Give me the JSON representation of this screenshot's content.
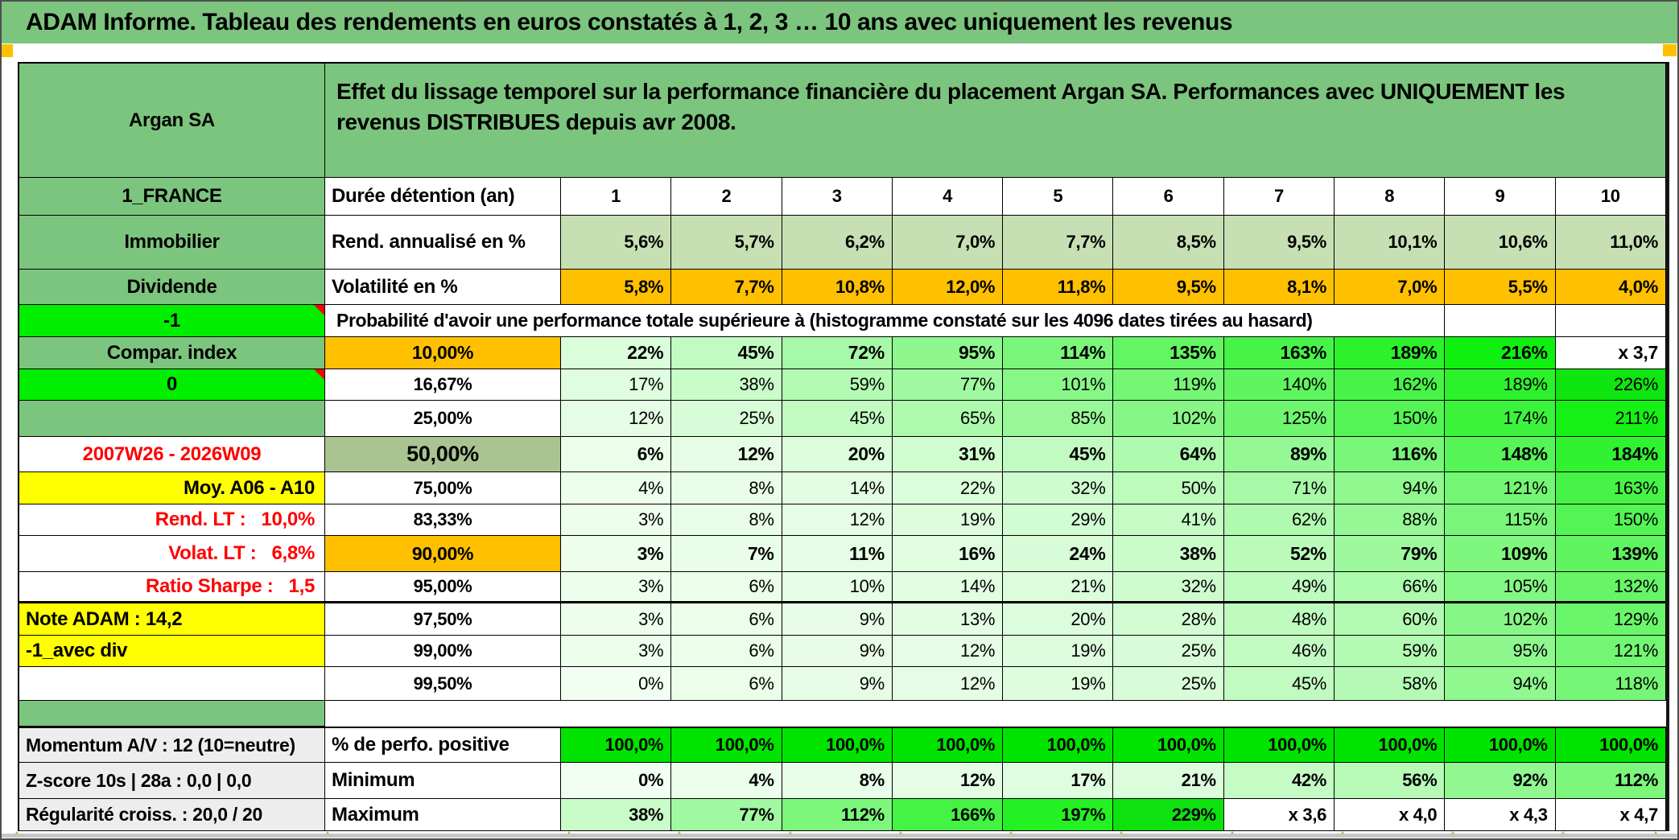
{
  "title": "ADAM Informe. Tableau des rendements en euros constatés à 1, 2, 3 … 10 ans avec uniquement les revenus",
  "header": {
    "asset": "Argan SA",
    "description": "Effet du lissage temporel sur la performance financière du placement Argan SA. Performances avec UNIQUEMENT les revenus DISTRIBUES depuis avr 2008."
  },
  "duree_row": {
    "col_a": "1_FRANCE",
    "label": "Durée détention (an)",
    "values": [
      "1",
      "2",
      "3",
      "4",
      "5",
      "6",
      "7",
      "8",
      "9",
      "10"
    ]
  },
  "rend_row": {
    "col_a": "Immobilier",
    "label": "Rend. annualisé en %",
    "values": [
      "5,6%",
      "5,7%",
      "6,2%",
      "7,0%",
      "7,7%",
      "8,5%",
      "9,5%",
      "10,1%",
      "10,6%",
      "11,0%"
    ]
  },
  "volat_row": {
    "col_a": "Dividende",
    "label": "Volatilité en %",
    "values": [
      "5,8%",
      "7,7%",
      "10,8%",
      "12,0%",
      "11,8%",
      "9,5%",
      "8,1%",
      "7,0%",
      "5,5%",
      "4,0%"
    ]
  },
  "proba_header": {
    "col_a": "-1",
    "label": "Probabilité d'avoir une performance totale supérieure à (histogramme constaté sur les 4096 dates tirées au hasard)"
  },
  "proba_rows": [
    {
      "a": "Compar. index",
      "a_v": "green",
      "b": "10,00%",
      "b_v": "orange",
      "emph": true,
      "values": [
        "22%",
        "45%",
        "72%",
        "95%",
        "114%",
        "135%",
        "163%",
        "189%",
        "216%",
        "x 3,7"
      ]
    },
    {
      "a": "0",
      "a_v": "bright",
      "corner": true,
      "b": "16,67%",
      "b_v": "plain",
      "values": [
        "17%",
        "38%",
        "59%",
        "77%",
        "101%",
        "119%",
        "140%",
        "162%",
        "189%",
        "226%"
      ]
    },
    {
      "a": "",
      "a_v": "green",
      "b": "25,00%",
      "b_v": "plain",
      "values": [
        "12%",
        "25%",
        "45%",
        "65%",
        "85%",
        "102%",
        "125%",
        "150%",
        "174%",
        "211%"
      ]
    },
    {
      "a": "2007W26 - 2026W09",
      "a_v": "redcenter",
      "b": "50,00%",
      "b_v": "sage",
      "emph": true,
      "values": [
        "6%",
        "12%",
        "20%",
        "31%",
        "45%",
        "64%",
        "89%",
        "116%",
        "148%",
        "184%"
      ]
    },
    {
      "a": "Moy. A06 - A10",
      "a_v": "yellow-r",
      "b": "75,00%",
      "b_v": "plain",
      "values": [
        "4%",
        "8%",
        "14%",
        "22%",
        "32%",
        "50%",
        "71%",
        "94%",
        "121%",
        "163%"
      ]
    },
    {
      "a": "Rend. LT :   10,0%",
      "a_v": "red",
      "b": "83,33%",
      "b_v": "plain",
      "values": [
        "3%",
        "8%",
        "12%",
        "19%",
        "29%",
        "41%",
        "62%",
        "88%",
        "115%",
        "150%"
      ]
    },
    {
      "a": "Volat. LT :   6,8%",
      "a_v": "red",
      "b": "90,00%",
      "b_v": "orange",
      "emph": true,
      "values": [
        "3%",
        "7%",
        "11%",
        "16%",
        "24%",
        "38%",
        "52%",
        "79%",
        "109%",
        "139%"
      ]
    },
    {
      "a": "Ratio Sharpe :   1,5",
      "a_v": "red",
      "b": "95,00%",
      "b_v": "plain",
      "thick": true,
      "values": [
        "3%",
        "6%",
        "10%",
        "14%",
        "21%",
        "32%",
        "49%",
        "66%",
        "105%",
        "132%"
      ]
    },
    {
      "a": "Note ADAM : 14,2",
      "a_v": "yellow-l",
      "b": "97,50%",
      "b_v": "plain",
      "values": [
        "3%",
        "6%",
        "9%",
        "13%",
        "20%",
        "28%",
        "48%",
        "60%",
        "102%",
        "129%"
      ]
    },
    {
      "a": "-1_avec div",
      "a_v": "yellow-l",
      "b": "99,00%",
      "b_v": "plain",
      "values": [
        "3%",
        "6%",
        "9%",
        "12%",
        "19%",
        "25%",
        "46%",
        "59%",
        "95%",
        "121%"
      ]
    },
    {
      "a": "",
      "a_v": "white",
      "b": "99,50%",
      "b_v": "plain",
      "values": [
        "0%",
        "6%",
        "9%",
        "12%",
        "19%",
        "25%",
        "45%",
        "58%",
        "94%",
        "118%"
      ]
    }
  ],
  "footer_rows": [
    {
      "a": "Momentum A/V : 12 (10=neutre)",
      "b": "% de perfo. positive",
      "variant": "perfo",
      "values": [
        "100,0%",
        "100,0%",
        "100,0%",
        "100,0%",
        "100,0%",
        "100,0%",
        "100,0%",
        "100,0%",
        "100,0%",
        "100,0%"
      ]
    },
    {
      "a": "Z-score 10s | 28a : 0,0 | 0,0",
      "b": "Minimum",
      "variant": "scale",
      "values": [
        "0%",
        "4%",
        "8%",
        "12%",
        "17%",
        "21%",
        "42%",
        "56%",
        "92%",
        "112%"
      ]
    },
    {
      "a": "Régularité croiss. : 20,0 / 20",
      "b": "Maximum",
      "variant": "scale",
      "values": [
        "38%",
        "77%",
        "112%",
        "166%",
        "197%",
        "229%",
        "x 3,6",
        "x 4,0",
        "x 4,3",
        "x 4,7"
      ]
    }
  ],
  "colors": {
    "header_green": "#7CC57E",
    "bright_green": "#00EE00",
    "perfo_green": "#00E400",
    "orange": "#FFC000",
    "yellow": "#FFFF00",
    "sage_light": "#C6E0B4",
    "sage_dark": "#A9C490",
    "gray_label": "#EDEDED",
    "red_text": "#FF0000",
    "marker_orange": "#E49B2D"
  }
}
